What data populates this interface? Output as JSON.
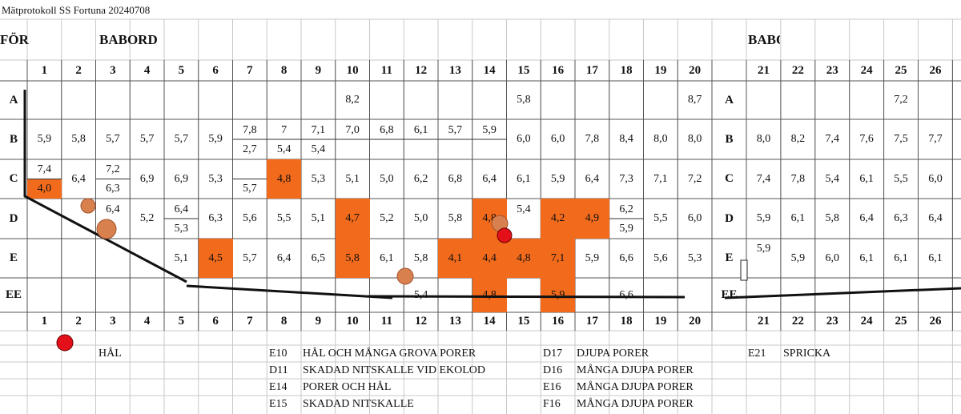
{
  "title": "Mätprotokoll SS Fortuna 20240708",
  "headers": {
    "left_edge": "FÖR",
    "left": "BABORD",
    "right": "BABORD"
  },
  "highlight_color": "#f26a1b",
  "columns_left": [
    "1",
    "2",
    "3",
    "4",
    "5",
    "6",
    "7",
    "8",
    "9",
    "10",
    "11",
    "12",
    "13",
    "14",
    "15",
    "16",
    "17",
    "18",
    "19",
    "20"
  ],
  "columns_right": [
    "21",
    "22",
    "23",
    "24",
    "25",
    "26"
  ],
  "rows": [
    {
      "label": "A",
      "left": [
        null,
        null,
        null,
        null,
        null,
        null,
        null,
        null,
        null,
        "8,2",
        null,
        null,
        null,
        null,
        "5,8",
        null,
        null,
        null,
        null,
        "8,7"
      ],
      "right": [
        null,
        null,
        null,
        null,
        "7,2",
        null
      ]
    },
    {
      "label": "B",
      "left": [
        "5,9",
        "5,8",
        "5,7",
        "5,7",
        "5,7",
        "5,9",
        {
          "top": "7,8",
          "bottom": "2,7"
        },
        {
          "top": "7",
          "bottom": "5,4"
        },
        {
          "top": "7,1",
          "bottom": "5,4"
        },
        {
          "top": "7,0"
        },
        {
          "top": "6,8"
        },
        {
          "top": "6,1"
        },
        {
          "top": "5,7"
        },
        {
          "top": "5,9"
        },
        "6,0",
        "6,0",
        "7,8",
        "8,4",
        "8,0",
        "8,0"
      ],
      "right": [
        "8,0",
        "8,2",
        "7,4",
        "7,6",
        "7,5",
        "7,7"
      ]
    },
    {
      "label": "C",
      "left": [
        {
          "top": "7,4",
          "bottom": "4,0",
          "bottom_highlight": true
        },
        "6,4",
        {
          "top": "7,2",
          "bottom": "6,3"
        },
        "6,9",
        "6,9",
        "5,3",
        {
          "bottom": "5,7"
        },
        {
          "text": "4,8",
          "highlight": true
        },
        "5,3",
        "5,1",
        "5,0",
        "6,2",
        "6,8",
        "6,4",
        "6,1",
        "5,9",
        "6,4",
        "7,3",
        "7,1",
        "7,2"
      ],
      "right": [
        "7,4",
        "7,8",
        "5,4",
        "6,1",
        "5,5",
        "6,0"
      ]
    },
    {
      "label": "D",
      "left": [
        null,
        null,
        {
          "top": "6,4"
        },
        "5,2",
        {
          "top": "6,4",
          "bottom": "5,3"
        },
        "6,3",
        "5,6",
        "5,5",
        "5,1",
        {
          "text": "4,7",
          "highlight": true
        },
        "5,2",
        "5,0",
        "5,8",
        {
          "text": "4,8",
          "highlight": true
        },
        {
          "top": "5,4"
        },
        {
          "text": "4,2",
          "highlight": true
        },
        {
          "text": "4,9",
          "highlight": true
        },
        {
          "top": "6,2",
          "bottom": "5,9"
        },
        "5,5",
        "6,0"
      ],
      "right": [
        "5,9",
        "6,1",
        "5,8",
        "6,4",
        "6,3",
        "6,4"
      ]
    },
    {
      "label": "E",
      "left": [
        null,
        null,
        null,
        null,
        "5,1",
        {
          "text": "4,5",
          "highlight": true
        },
        "5,7",
        "6,4",
        "6,5",
        {
          "text": "5,8",
          "highlight": true
        },
        "6,1",
        "5,8",
        {
          "text": "4,1",
          "highlight": true
        },
        {
          "text": "4,4",
          "highlight": true
        },
        {
          "text": "4,8",
          "highlight": true
        },
        {
          "text": "7,1",
          "highlight": true
        },
        "5,9",
        "6,6",
        "5,6",
        "5,3"
      ],
      "right": [
        {
          "top": "5,9"
        },
        "5,9",
        "6,0",
        "6,1",
        "6,1",
        "6,1"
      ]
    },
    {
      "label": "EE",
      "left": [
        null,
        null,
        null,
        null,
        null,
        null,
        null,
        null,
        null,
        null,
        null,
        "5,4",
        null,
        {
          "text": "4,8",
          "highlight": true
        },
        null,
        {
          "text": "5,9",
          "highlight": true
        },
        null,
        "6,6",
        null,
        null
      ],
      "right": [
        null,
        null,
        null,
        null,
        null,
        null
      ]
    }
  ],
  "notes": [
    [
      {
        "text": "HÅL"
      }
    ],
    [
      {
        "code": "E10",
        "text": "HÅL OCH MÅNGA GROVA PORER"
      },
      {
        "code": "D11",
        "text": "SKADAD NITSKALLE VID EKOLOD"
      },
      {
        "code": "E14",
        "text": "PORER OCH HÅL"
      },
      {
        "code": "E15",
        "text": "SKADAD NITSKALLE"
      }
    ],
    [
      {
        "code": "D17",
        "text": "DJUPA PORER"
      },
      {
        "code": "D16",
        "text": "MÅNGA DJUPA PORER"
      },
      {
        "code": "E16",
        "text": "MÅNGA DJUPA PORER"
      },
      {
        "code": "F16",
        "text": "MÅNGA DJUPA PORER"
      }
    ],
    [
      {
        "code": "E21",
        "text": "SPRICKA"
      }
    ]
  ]
}
